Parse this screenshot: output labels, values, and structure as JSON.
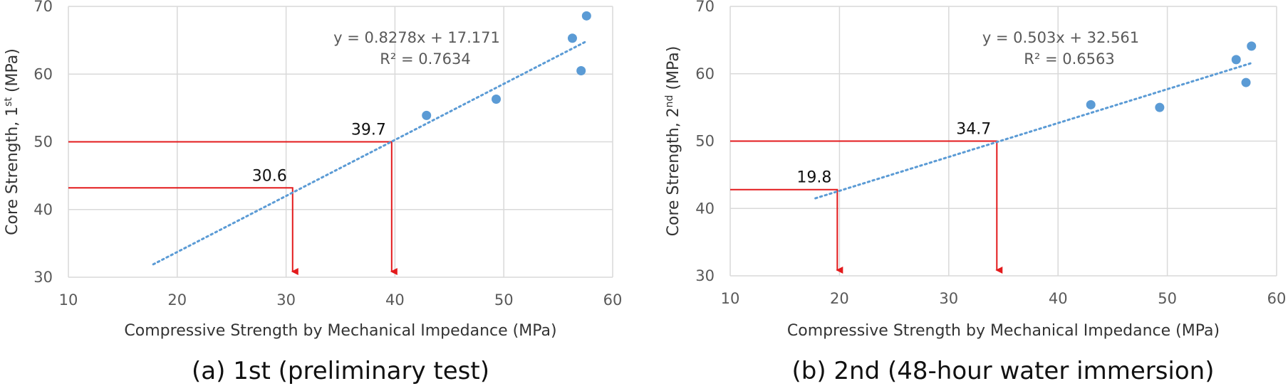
{
  "chart_data": [
    {
      "type": "scatter",
      "caption": "(a) 1st (preliminary test)",
      "xlabel": "Compressive Strength by Mechanical Impedance (MPa)",
      "ylabel": {
        "prefix": "Core Strength, 1",
        "sup": "st",
        "suffix": " (MPa)"
      },
      "xlim": [
        10,
        60
      ],
      "ylim": [
        30,
        70
      ],
      "xticks": [
        "10",
        "20",
        "30",
        "40",
        "50",
        "60"
      ],
      "yticks": [
        "30",
        "40",
        "50",
        "60",
        "70"
      ],
      "grid": true,
      "points": [
        {
          "x": 42.9,
          "y": 53.9
        },
        {
          "x": 49.3,
          "y": 56.3
        },
        {
          "x": 56.3,
          "y": 65.3
        },
        {
          "x": 57.1,
          "y": 60.5
        },
        {
          "x": 57.6,
          "y": 68.6
        }
      ],
      "trendline": {
        "slope": 0.8278,
        "intercept": 17.171,
        "x_range": [
          17.8,
          57.6
        ],
        "equation": "y = 0.8278x + 17.171",
        "r2": "R² = 0.7634"
      },
      "callouts": [
        {
          "label": "30.6",
          "x": 30.6,
          "y": 43.2
        },
        {
          "label": "39.7",
          "x": 39.7,
          "y": 50.0
        }
      ],
      "colors": {
        "points": "#5b9bd5",
        "trendline": "#5b9bd5",
        "callout_lines": "#e31a1c",
        "grid": "#d9d9d9"
      }
    },
    {
      "type": "scatter",
      "caption": "(b) 2nd (48-hour water immersion)",
      "xlabel": "Compressive Strength by Mechanical Impedance (MPa)",
      "ylabel": {
        "prefix": "Core Strength, 2",
        "sup": "nd",
        "suffix": " (MPa)"
      },
      "xlim": [
        10,
        60
      ],
      "ylim": [
        30,
        70
      ],
      "xticks": [
        "10",
        "20",
        "30",
        "40",
        "50",
        "60"
      ],
      "yticks": [
        "30",
        "40",
        "50",
        "60",
        "70"
      ],
      "grid": true,
      "points": [
        {
          "x": 43.0,
          "y": 55.4
        },
        {
          "x": 49.3,
          "y": 55.0
        },
        {
          "x": 56.3,
          "y": 62.1
        },
        {
          "x": 57.2,
          "y": 58.7
        },
        {
          "x": 57.7,
          "y": 64.1
        }
      ],
      "trendline": {
        "slope": 0.503,
        "intercept": 32.561,
        "x_range": [
          17.8,
          57.6
        ],
        "equation": "y = 0.503x + 32.561",
        "r2": "R² = 0.6563"
      },
      "callouts": [
        {
          "label": "19.8",
          "x": 19.8,
          "y": 42.8
        },
        {
          "label": "34.7",
          "x": 34.4,
          "y": 50.0
        }
      ],
      "colors": {
        "points": "#5b9bd5",
        "trendline": "#5b9bd5",
        "callout_lines": "#e31a1c",
        "grid": "#d9d9d9"
      }
    }
  ]
}
